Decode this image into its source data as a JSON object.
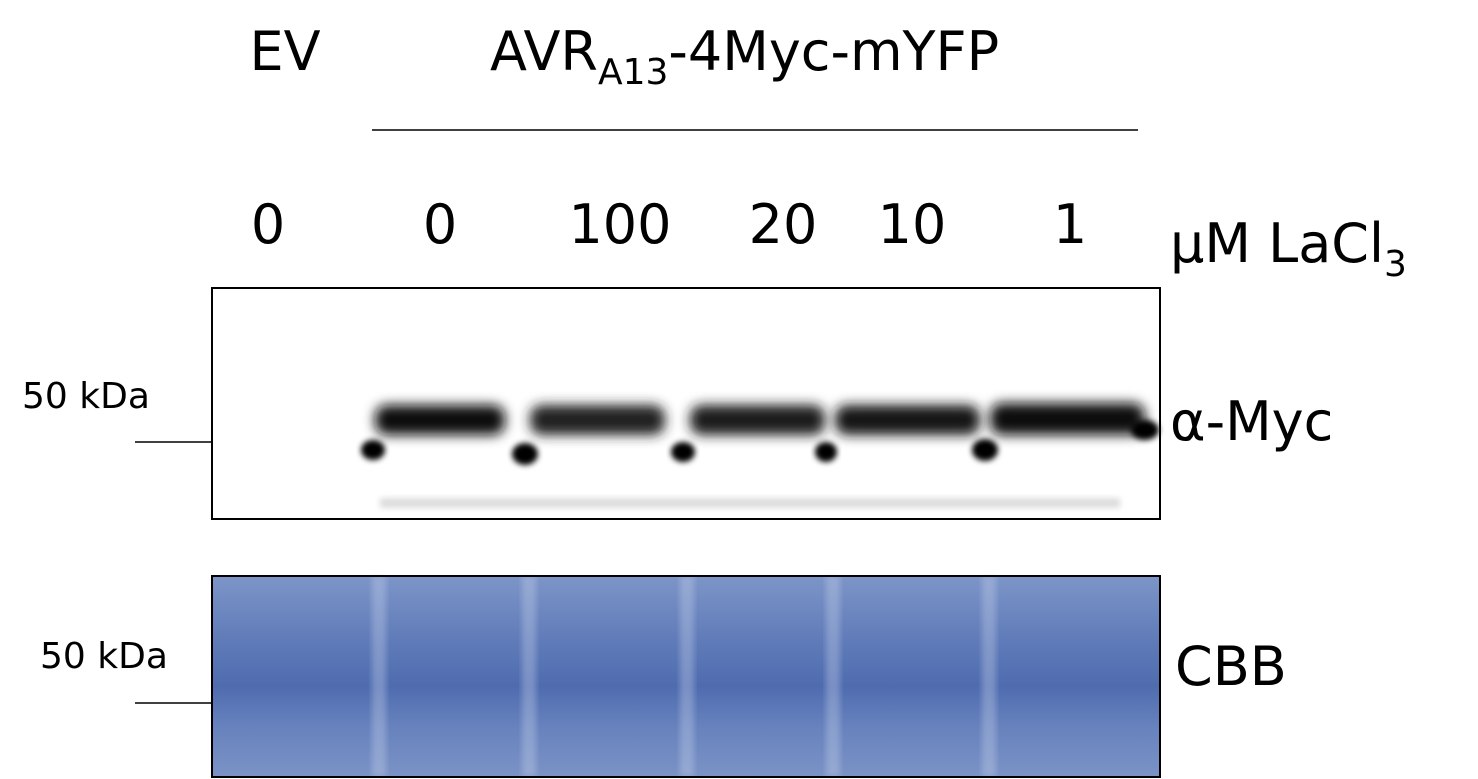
{
  "header": {
    "control": "EV",
    "construct": {
      "main": "AVR",
      "subscript": "A13",
      "rest": "-4Myc-mYFP"
    }
  },
  "lanes": {
    "labels": [
      "0",
      "0",
      "100",
      "20",
      "10",
      "1"
    ],
    "unit": {
      "main": "μM LaCl",
      "subscript": "3"
    }
  },
  "panels": [
    {
      "marker": "50 kDa",
      "label": "α-Myc"
    },
    {
      "marker": "50 kDa",
      "label": "CBB"
    }
  ]
}
